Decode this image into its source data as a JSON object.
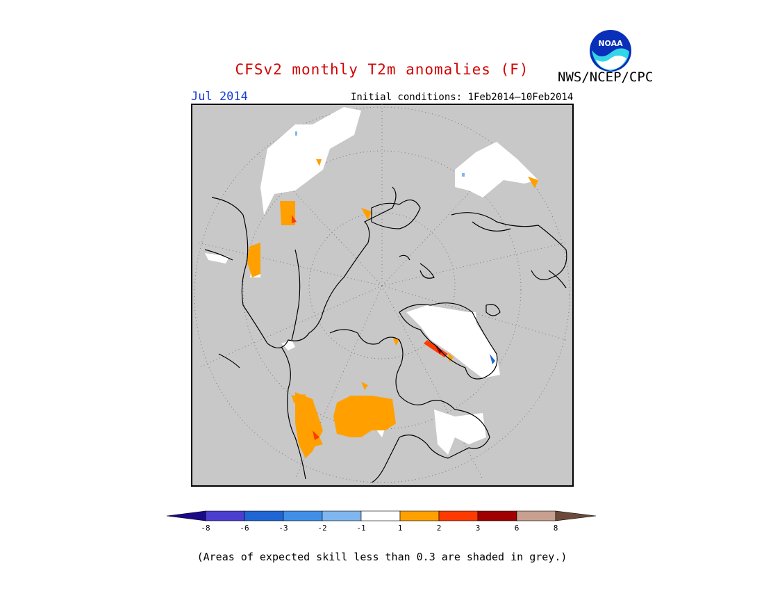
{
  "title": "CFSv2 monthly T2m anomalies (F)",
  "agency": "NWS/NCEP/CPC",
  "logo_text": "NOAA",
  "valid_month": "Jul 2014",
  "initial_conditions": "Initial conditions: 1Feb2014–10Feb2014",
  "skill_note": "(Areas of expected skill less than 0.3 are shaded in grey.)",
  "colors": {
    "title": "#d40000",
    "month": "#1a3cd6",
    "background_grey": "#c8c8c8",
    "map_frame": "#000000"
  },
  "legend": {
    "tick_labels": [
      "-8",
      "-6",
      "-3",
      "-2",
      "-1",
      "1",
      "2",
      "3",
      "6",
      "8"
    ],
    "bins": [
      {
        "label": "< -8",
        "color": "#1a0a8a"
      },
      {
        "label": "-8 to -6",
        "color": "#4a3fcf"
      },
      {
        "label": "-6 to -3",
        "color": "#1f66d4"
      },
      {
        "label": "-3 to -2",
        "color": "#3f8fe8"
      },
      {
        "label": "-2 to -1",
        "color": "#7fb6f0"
      },
      {
        "label": "-1 to 1",
        "color": "#ffffff"
      },
      {
        "label": "1 to 2",
        "color": "#ffa000"
      },
      {
        "label": "2 to 3",
        "color": "#ff3a00"
      },
      {
        "label": "3 to 6",
        "color": "#a00000"
      },
      {
        "label": "6 to 8",
        "color": "#c8a090"
      },
      {
        "label": "> 8",
        "color": "#6b4a3a"
      }
    ]
  }
}
